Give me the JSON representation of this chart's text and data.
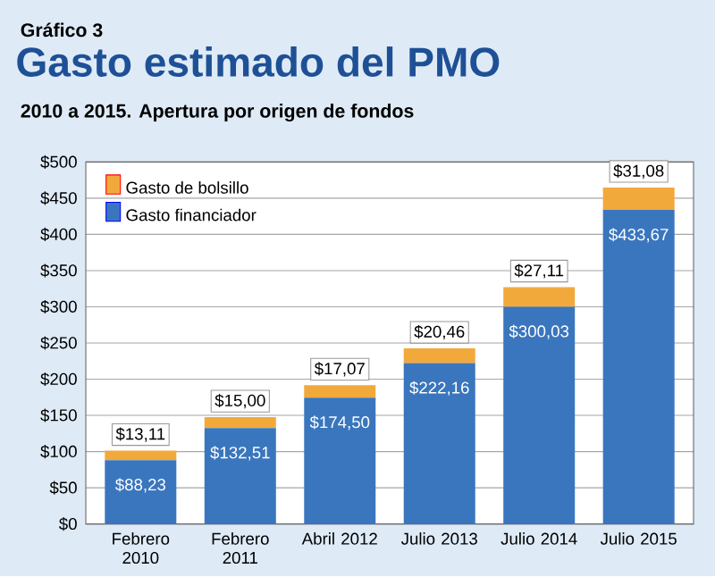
{
  "chart_data": {
    "type": "bar",
    "stacked": true,
    "title": "Gasto estimado del PMO",
    "subtitle": "2010 a 2015. Apertura por origen de fondos",
    "annotations": [
      "Gráfico 3"
    ],
    "categories": [
      "Febrero 2010",
      "Febrero 2011",
      "Abril 2012",
      "Julio 2013",
      "Julio 2014",
      "Julio 2015"
    ],
    "series": [
      {
        "name": "Gasto financiador",
        "color": "#3a76bd",
        "values": [
          88.23,
          132.51,
          174.5,
          222.16,
          300.03,
          433.67
        ],
        "value_labels": [
          "$88,23",
          "$132,51",
          "$174,50",
          "$222,16",
          "$300,03",
          "$433,67"
        ]
      },
      {
        "name": "Gasto de bolsillo",
        "color": "#f2a93b",
        "values": [
          13.11,
          15.0,
          17.07,
          20.46,
          27.11,
          31.08
        ],
        "value_labels": [
          "$13,11",
          "$15,00",
          "$17,07",
          "$20,46",
          "$27,11",
          "$31,08"
        ]
      }
    ],
    "ylim": [
      0,
      500
    ],
    "yticks": [
      {
        "value": 0,
        "label": "$0"
      },
      {
        "value": 50,
        "label": "$50"
      },
      {
        "value": 100,
        "label": "$100"
      },
      {
        "value": 150,
        "label": "$150"
      },
      {
        "value": 200,
        "label": "$200"
      },
      {
        "value": 250,
        "label": "$250"
      },
      {
        "value": 300,
        "label": "$300"
      },
      {
        "value": 350,
        "label": "$350"
      },
      {
        "value": 400,
        "label": "$400"
      },
      {
        "value": 450,
        "label": "$450"
      },
      {
        "value": 500,
        "label": "$500"
      }
    ],
    "grid": "y",
    "legend": "top left"
  }
}
